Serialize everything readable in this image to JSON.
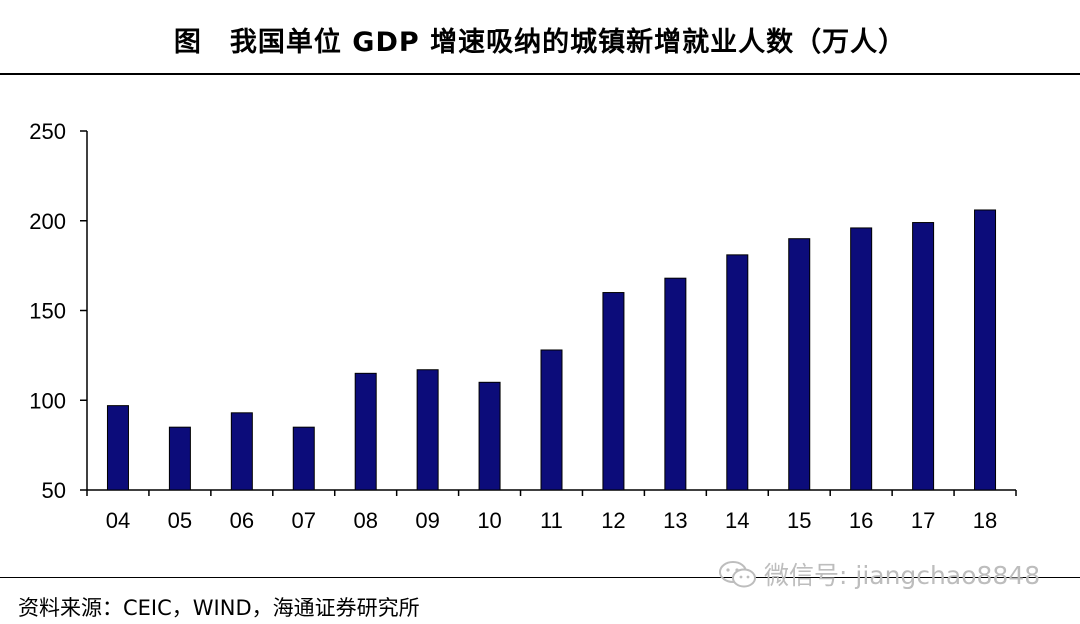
{
  "title": "图　我国单位 GDP 增速吸纳的城镇新增就业人数（万人）",
  "source": "资料来源：CEIC，WIND，海通证券研究所",
  "watermark": "微信号: jiangchao8848",
  "colors": {
    "bar": "#0c0c7a",
    "axis": "#000000"
  },
  "chart_data": {
    "type": "bar",
    "categories": [
      "04",
      "05",
      "06",
      "07",
      "08",
      "09",
      "10",
      "11",
      "12",
      "13",
      "14",
      "15",
      "16",
      "17",
      "18"
    ],
    "values": [
      97,
      85,
      93,
      85,
      115,
      117,
      110,
      128,
      160,
      168,
      181,
      190,
      196,
      199,
      206
    ],
    "ylim": [
      50,
      250
    ],
    "yticks": [
      50,
      100,
      150,
      200,
      250
    ],
    "xlabel": "",
    "ylabel": "",
    "grid": false,
    "legend": "none"
  }
}
